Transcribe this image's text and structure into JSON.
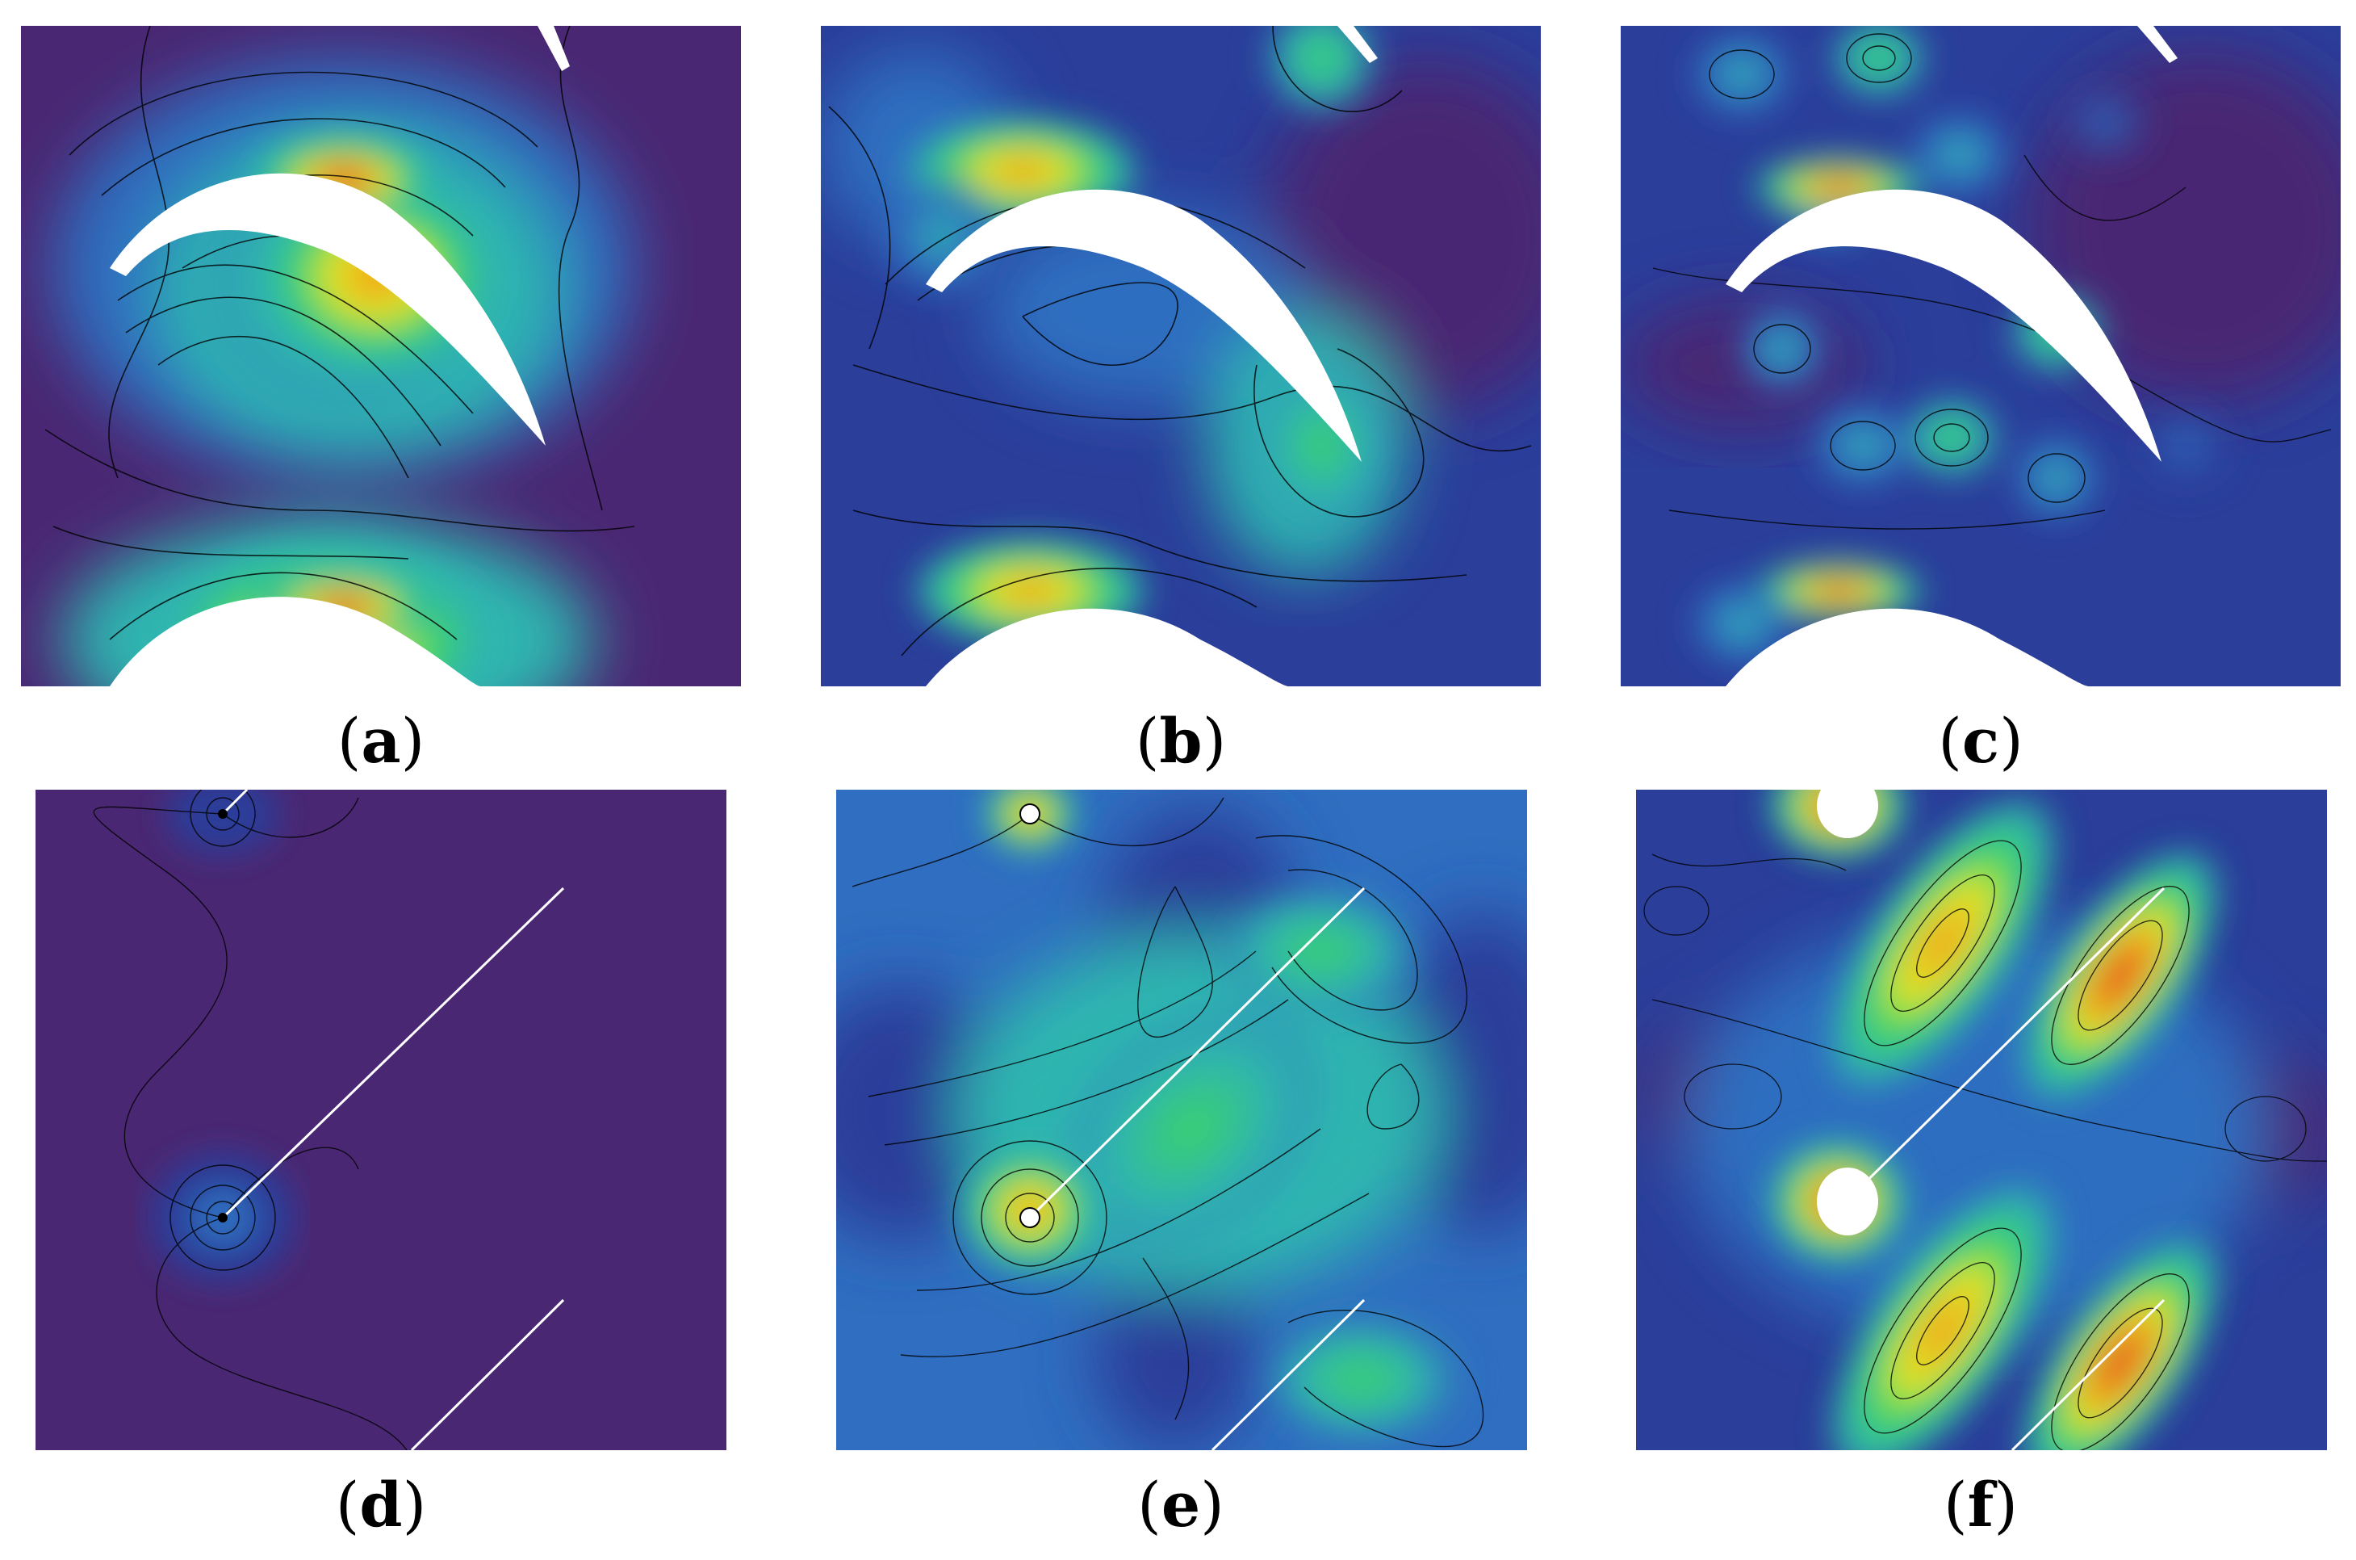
{
  "figure": {
    "panels": [
      {
        "id": "a",
        "label": "a"
      },
      {
        "id": "b",
        "label": "b"
      },
      {
        "id": "c",
        "label": "c"
      },
      {
        "id": "d",
        "label": "d"
      },
      {
        "id": "e",
        "label": "e"
      },
      {
        "id": "f",
        "label": "f"
      }
    ],
    "colors": {
      "background": "#4a2773",
      "deep_blue": "#2a3e9a",
      "blue": "#2f6ec0",
      "teal": "#2fb5b0",
      "green": "#3ad36a",
      "yellow": "#e8e81f",
      "orange": "#f08a1e",
      "red": "#d81f1f",
      "blade": "#ffffff",
      "contour": "#000000"
    }
  }
}
